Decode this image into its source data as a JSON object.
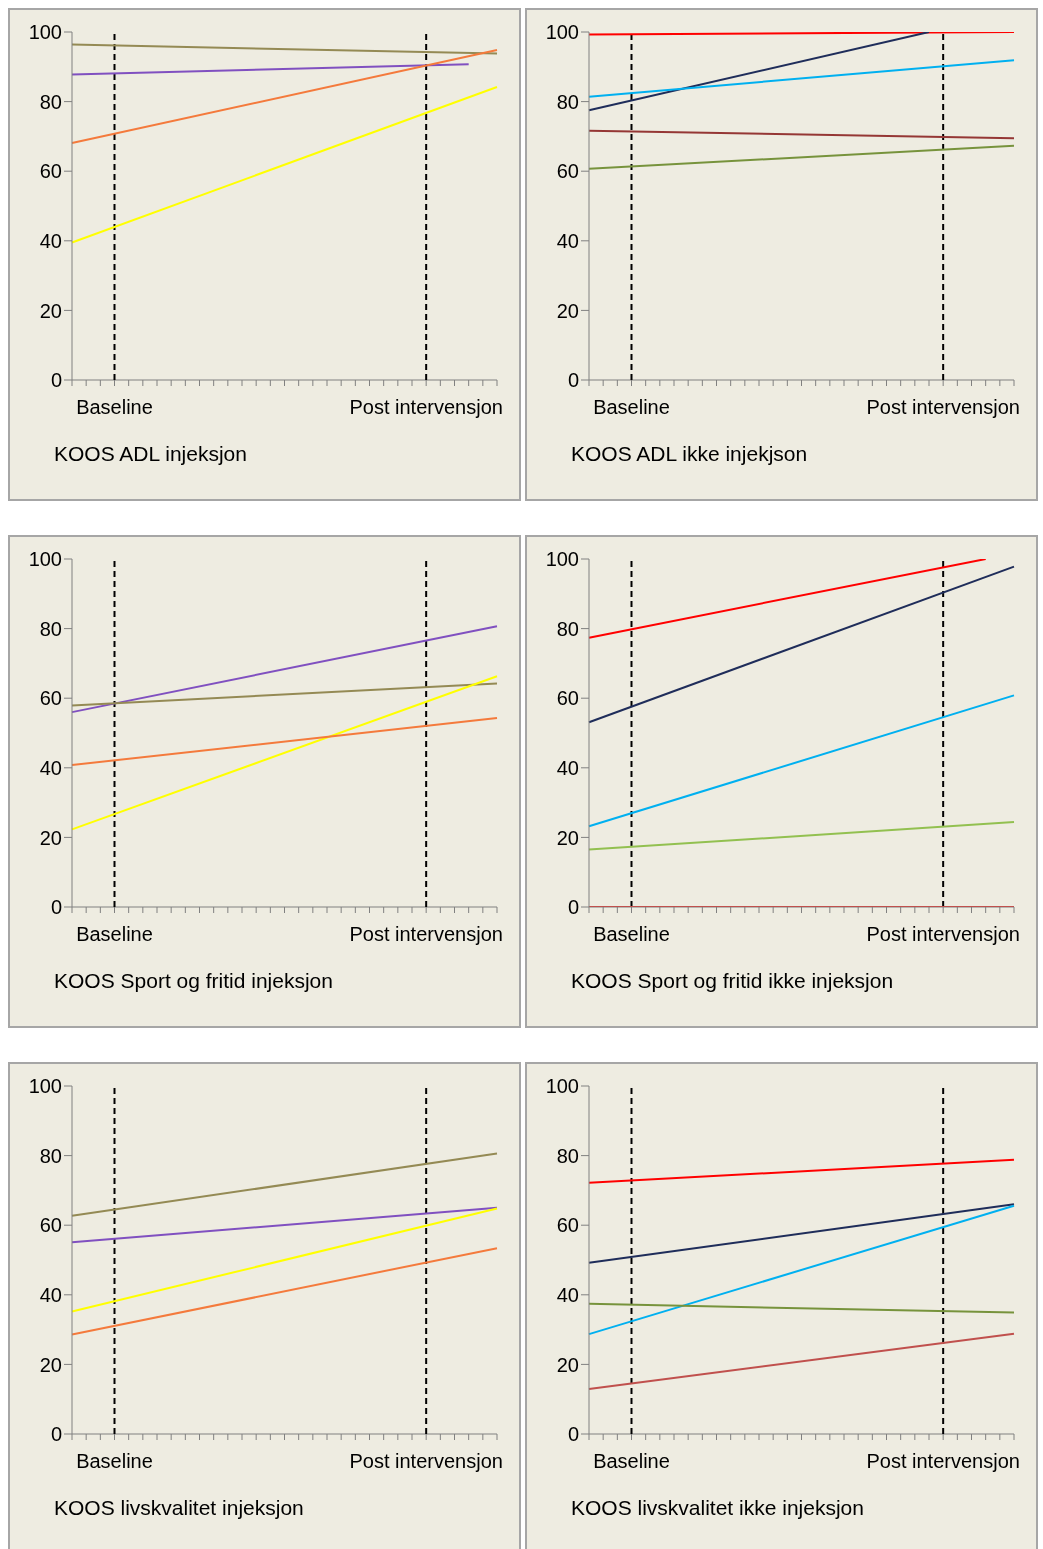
{
  "chart_data": [
    {
      "type": "line",
      "xlabel": "KOOS ADL injeksjon",
      "ylim": [
        0,
        100
      ],
      "yticks": [
        0,
        20,
        40,
        60,
        80,
        100
      ],
      "categories": [
        null,
        null,
        null,
        "Baseline",
        null,
        null,
        null,
        null,
        null,
        null,
        null,
        null,
        null,
        null,
        null,
        null,
        null,
        null,
        null,
        null,
        null,
        null,
        null,
        null,
        null,
        "Post intervensjon",
        null,
        null,
        null,
        null,
        null
      ],
      "ref_lines": [
        {
          "axis": "x",
          "value": "Baseline",
          "color": "#000000",
          "line_style": "dashed"
        },
        {
          "axis": "x",
          "value": "Post intervensjon",
          "color": "#000000",
          "line_style": "dashed"
        }
      ],
      "series": [
        {
          "color": "#948a54",
          "values": [
            96.4,
            null,
            null,
            null,
            null,
            null,
            null,
            null,
            null,
            null,
            null,
            null,
            null,
            null,
            null,
            null,
            null,
            null,
            null,
            null,
            null,
            null,
            null,
            null,
            null,
            null,
            null,
            null,
            null,
            null,
            93.8
          ]
        },
        {
          "color": "#8050c0",
          "values": [
            87.8,
            null,
            null,
            null,
            null,
            null,
            null,
            null,
            null,
            null,
            null,
            null,
            null,
            null,
            null,
            null,
            null,
            null,
            null,
            null,
            null,
            null,
            null,
            null,
            null,
            null,
            null,
            null,
            90.7,
            null,
            null
          ]
        },
        {
          "color": "#f47a3c",
          "values": [
            68.1,
            null,
            null,
            null,
            null,
            null,
            null,
            null,
            null,
            null,
            null,
            null,
            null,
            null,
            null,
            null,
            null,
            null,
            null,
            null,
            null,
            null,
            null,
            null,
            null,
            null,
            null,
            null,
            null,
            null,
            94.8
          ]
        },
        {
          "color": "#ffff00",
          "values": [
            39.5,
            null,
            null,
            null,
            null,
            null,
            null,
            null,
            null,
            null,
            null,
            null,
            null,
            null,
            null,
            null,
            null,
            null,
            null,
            null,
            null,
            null,
            null,
            null,
            null,
            null,
            null,
            null,
            null,
            null,
            84.2
          ]
        }
      ]
    },
    {
      "type": "line",
      "xlabel": "KOOS ADL ikke injekjson",
      "ylim": [
        0,
        100
      ],
      "yticks": [
        0,
        20,
        40,
        60,
        80,
        100
      ],
      "categories": [
        null,
        null,
        null,
        "Baseline",
        null,
        null,
        null,
        null,
        null,
        null,
        null,
        null,
        null,
        null,
        null,
        null,
        null,
        null,
        null,
        null,
        null,
        null,
        null,
        null,
        null,
        "Post intervensjon",
        null,
        null,
        null,
        null,
        null
      ],
      "ref_lines": [
        {
          "axis": "x",
          "value": "Baseline",
          "color": "#000000",
          "line_style": "dashed"
        },
        {
          "axis": "x",
          "value": "Post intervensjon",
          "color": "#000000",
          "line_style": "dashed"
        }
      ],
      "series": [
        {
          "color": "#ff0000",
          "values": [
            99.3,
            null,
            null,
            null,
            null,
            null,
            null,
            null,
            null,
            null,
            null,
            null,
            null,
            null,
            null,
            null,
            null,
            null,
            null,
            null,
            null,
            null,
            null,
            null,
            null,
            null,
            null,
            null,
            null,
            null,
            100
          ]
        },
        {
          "color": "#1f2d5a",
          "values": [
            77.5,
            null,
            null,
            null,
            null,
            null,
            null,
            null,
            null,
            null,
            null,
            null,
            null,
            null,
            null,
            null,
            null,
            null,
            null,
            null,
            null,
            null,
            null,
            null,
            100,
            null,
            null,
            null,
            null,
            null,
            null
          ]
        },
        {
          "color": "#00b0f0",
          "values": [
            81.4,
            null,
            null,
            null,
            null,
            null,
            null,
            null,
            null,
            null,
            null,
            null,
            null,
            null,
            null,
            null,
            null,
            null,
            null,
            null,
            null,
            null,
            null,
            null,
            null,
            null,
            null,
            null,
            null,
            null,
            91.9
          ]
        },
        {
          "color": "#953735",
          "values": [
            71.6,
            null,
            null,
            null,
            null,
            null,
            null,
            null,
            null,
            null,
            null,
            null,
            null,
            null,
            null,
            null,
            null,
            null,
            null,
            null,
            null,
            null,
            null,
            null,
            null,
            null,
            null,
            null,
            null,
            null,
            69.5
          ]
        },
        {
          "color": "#77933c",
          "values": [
            60.7,
            null,
            null,
            null,
            null,
            null,
            null,
            null,
            null,
            null,
            null,
            null,
            null,
            null,
            null,
            null,
            null,
            null,
            null,
            null,
            null,
            null,
            null,
            null,
            null,
            null,
            null,
            null,
            null,
            null,
            67.3
          ]
        }
      ]
    },
    {
      "type": "line",
      "xlabel": "KOOS Sport og fritid injeksjon",
      "ylim": [
        0,
        100
      ],
      "yticks": [
        0,
        20,
        40,
        60,
        80,
        100
      ],
      "categories": [
        null,
        null,
        null,
        "Baseline",
        null,
        null,
        null,
        null,
        null,
        null,
        null,
        null,
        null,
        null,
        null,
        null,
        null,
        null,
        null,
        null,
        null,
        null,
        null,
        null,
        null,
        "Post intervensjon",
        null,
        null,
        null,
        null,
        null
      ],
      "ref_lines": [
        {
          "axis": "x",
          "value": "Baseline",
          "color": "#000000",
          "line_style": "dashed"
        },
        {
          "axis": "x",
          "value": "Post intervensjon",
          "color": "#000000",
          "line_style": "dashed"
        }
      ],
      "series": [
        {
          "color": "#8050c0",
          "values": [
            56.0,
            null,
            null,
            null,
            null,
            null,
            null,
            null,
            null,
            null,
            null,
            null,
            null,
            null,
            null,
            null,
            null,
            null,
            null,
            null,
            null,
            null,
            null,
            null,
            null,
            null,
            null,
            null,
            null,
            null,
            80.7
          ]
        },
        {
          "color": "#948a54",
          "values": [
            57.9,
            null,
            null,
            null,
            null,
            null,
            null,
            null,
            null,
            null,
            null,
            null,
            null,
            null,
            null,
            null,
            null,
            null,
            null,
            null,
            null,
            null,
            null,
            null,
            null,
            null,
            null,
            null,
            null,
            null,
            64.2
          ]
        },
        {
          "color": "#ffff00",
          "values": [
            22.3,
            null,
            null,
            null,
            null,
            null,
            null,
            null,
            null,
            null,
            null,
            null,
            null,
            null,
            null,
            null,
            null,
            null,
            null,
            null,
            null,
            null,
            null,
            null,
            null,
            null,
            null,
            null,
            null,
            null,
            66.3
          ]
        },
        {
          "color": "#f47a3c",
          "values": [
            40.8,
            null,
            null,
            null,
            null,
            null,
            null,
            null,
            null,
            null,
            null,
            null,
            null,
            null,
            null,
            null,
            null,
            null,
            null,
            null,
            null,
            null,
            null,
            null,
            null,
            null,
            null,
            null,
            null,
            null,
            54.3
          ]
        }
      ]
    },
    {
      "type": "line",
      "xlabel": "KOOS Sport og fritid ikke injeksjon",
      "ylim": [
        0,
        100
      ],
      "yticks": [
        0,
        20,
        40,
        60,
        80,
        100
      ],
      "categories": [
        null,
        null,
        null,
        "Baseline",
        null,
        null,
        null,
        null,
        null,
        null,
        null,
        null,
        null,
        null,
        null,
        null,
        null,
        null,
        null,
        null,
        null,
        null,
        null,
        null,
        null,
        "Post intervensjon",
        null,
        null,
        null,
        null,
        null
      ],
      "ref_lines": [
        {
          "axis": "x",
          "value": "Baseline",
          "color": "#000000",
          "line_style": "dashed"
        },
        {
          "axis": "x",
          "value": "Post intervensjon",
          "color": "#000000",
          "line_style": "dashed"
        }
      ],
      "series": [
        {
          "color": "#ff0000",
          "values": [
            77.4,
            null,
            null,
            null,
            null,
            null,
            null,
            null,
            null,
            null,
            null,
            null,
            null,
            null,
            null,
            null,
            null,
            null,
            null,
            null,
            null,
            null,
            null,
            null,
            null,
            null,
            null,
            null,
            100,
            null,
            null
          ]
        },
        {
          "color": "#1f2d5a",
          "values": [
            53.1,
            null,
            null,
            null,
            null,
            null,
            null,
            null,
            null,
            null,
            null,
            null,
            null,
            null,
            null,
            null,
            null,
            null,
            null,
            null,
            null,
            null,
            null,
            null,
            null,
            null,
            null,
            null,
            null,
            null,
            97.8
          ]
        },
        {
          "color": "#00b0f0",
          "values": [
            23.2,
            null,
            null,
            null,
            null,
            null,
            null,
            null,
            null,
            null,
            null,
            null,
            null,
            null,
            null,
            null,
            null,
            null,
            null,
            null,
            null,
            null,
            null,
            null,
            null,
            null,
            null,
            null,
            null,
            null,
            60.8
          ]
        },
        {
          "color": "#92c050",
          "values": [
            16.5,
            null,
            null,
            null,
            null,
            null,
            null,
            null,
            null,
            null,
            null,
            null,
            null,
            null,
            null,
            null,
            null,
            null,
            null,
            null,
            null,
            null,
            null,
            null,
            null,
            null,
            null,
            null,
            null,
            null,
            24.4
          ]
        },
        {
          "color": "#c0504d",
          "values": [
            0,
            null,
            null,
            null,
            null,
            null,
            null,
            null,
            null,
            null,
            null,
            null,
            null,
            null,
            null,
            null,
            null,
            null,
            null,
            null,
            null,
            null,
            null,
            null,
            null,
            null,
            null,
            null,
            null,
            null,
            0
          ]
        }
      ]
    },
    {
      "type": "line",
      "xlabel": "KOOS livskvalitet injeksjon",
      "ylim": [
        0,
        100
      ],
      "yticks": [
        0,
        20,
        40,
        60,
        80,
        100
      ],
      "categories": [
        null,
        null,
        null,
        "Baseline",
        null,
        null,
        null,
        null,
        null,
        null,
        null,
        null,
        null,
        null,
        null,
        null,
        null,
        null,
        null,
        null,
        null,
        null,
        null,
        null,
        null,
        "Post intervensjon",
        null,
        null,
        null,
        null,
        null
      ],
      "ref_lines": [
        {
          "axis": "x",
          "value": "Baseline",
          "color": "#000000",
          "line_style": "dashed"
        },
        {
          "axis": "x",
          "value": "Post intervensjon",
          "color": "#000000",
          "line_style": "dashed"
        }
      ],
      "series": [
        {
          "color": "#948a54",
          "values": [
            62.7,
            null,
            null,
            null,
            null,
            null,
            null,
            null,
            null,
            null,
            null,
            null,
            null,
            null,
            null,
            null,
            null,
            null,
            null,
            null,
            null,
            null,
            null,
            null,
            null,
            null,
            null,
            null,
            null,
            null,
            80.6
          ]
        },
        {
          "color": "#8050c0",
          "values": [
            55.1,
            null,
            null,
            null,
            null,
            null,
            null,
            null,
            null,
            null,
            null,
            null,
            null,
            null,
            null,
            null,
            null,
            null,
            null,
            null,
            null,
            null,
            null,
            null,
            null,
            null,
            null,
            null,
            null,
            null,
            65.0
          ]
        },
        {
          "color": "#ffff00",
          "values": [
            35.2,
            null,
            null,
            null,
            null,
            null,
            null,
            null,
            null,
            null,
            null,
            null,
            null,
            null,
            null,
            null,
            null,
            null,
            null,
            null,
            null,
            null,
            null,
            null,
            null,
            null,
            null,
            null,
            null,
            null,
            64.8
          ]
        },
        {
          "color": "#f47a3c",
          "values": [
            28.6,
            null,
            null,
            null,
            null,
            null,
            null,
            null,
            null,
            null,
            null,
            null,
            null,
            null,
            null,
            null,
            null,
            null,
            null,
            null,
            null,
            null,
            null,
            null,
            null,
            null,
            null,
            null,
            null,
            null,
            53.4
          ]
        }
      ]
    },
    {
      "type": "line",
      "xlabel": "KOOS livskvalitet ikke injeksjon",
      "ylim": [
        0,
        100
      ],
      "yticks": [
        0,
        20,
        40,
        60,
        80,
        100
      ],
      "categories": [
        null,
        null,
        null,
        "Baseline",
        null,
        null,
        null,
        null,
        null,
        null,
        null,
        null,
        null,
        null,
        null,
        null,
        null,
        null,
        null,
        null,
        null,
        null,
        null,
        null,
        null,
        "Post intervensjon",
        null,
        null,
        null,
        null,
        null
      ],
      "ref_lines": [
        {
          "axis": "x",
          "value": "Baseline",
          "color": "#000000",
          "line_style": "dashed"
        },
        {
          "axis": "x",
          "value": "Post intervensjon",
          "color": "#000000",
          "line_style": "dashed"
        }
      ],
      "series": [
        {
          "color": "#ff0000",
          "values": [
            72.2,
            null,
            null,
            null,
            null,
            null,
            null,
            null,
            null,
            null,
            null,
            null,
            null,
            null,
            null,
            null,
            null,
            null,
            null,
            null,
            null,
            null,
            null,
            null,
            null,
            null,
            null,
            null,
            null,
            null,
            78.8
          ]
        },
        {
          "color": "#1f2d5a",
          "values": [
            49.2,
            null,
            null,
            null,
            null,
            null,
            null,
            null,
            null,
            null,
            null,
            null,
            null,
            null,
            null,
            null,
            null,
            null,
            null,
            null,
            null,
            null,
            null,
            null,
            null,
            null,
            null,
            null,
            null,
            null,
            66.0
          ]
        },
        {
          "color": "#00b0f0",
          "values": [
            28.7,
            null,
            null,
            null,
            null,
            null,
            null,
            null,
            null,
            null,
            null,
            null,
            null,
            null,
            null,
            null,
            null,
            null,
            null,
            null,
            null,
            null,
            null,
            null,
            null,
            null,
            null,
            null,
            null,
            null,
            65.6
          ]
        },
        {
          "color": "#77933c",
          "values": [
            37.4,
            null,
            null,
            null,
            null,
            null,
            null,
            null,
            null,
            null,
            null,
            null,
            null,
            null,
            null,
            null,
            null,
            null,
            null,
            null,
            null,
            null,
            null,
            null,
            null,
            null,
            null,
            null,
            null,
            null,
            34.9
          ]
        },
        {
          "color": "#c0504d",
          "values": [
            12.9,
            null,
            null,
            null,
            null,
            null,
            null,
            null,
            null,
            null,
            null,
            null,
            null,
            null,
            null,
            null,
            null,
            null,
            null,
            null,
            null,
            null,
            null,
            null,
            null,
            null,
            null,
            null,
            null,
            null,
            28.8
          ]
        }
      ]
    }
  ]
}
